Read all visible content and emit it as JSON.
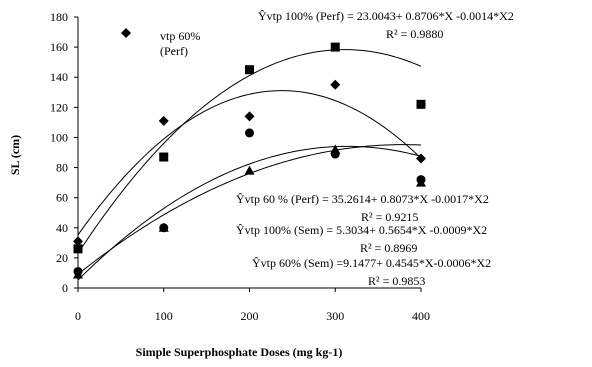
{
  "chart_data": {
    "type": "scatter",
    "xlabel": "Simple Superphosphate Doses (mg kg-1)",
    "ylabel": "SL (cm)",
    "xlim": [
      0,
      400
    ],
    "ylim": [
      0,
      180
    ],
    "x_ticks": [
      "0",
      "100",
      "200",
      "300",
      "400"
    ],
    "y_ticks": [
      "0",
      "20",
      "40",
      "60",
      "80",
      "100",
      "120",
      "140",
      "160",
      "180"
    ],
    "grid": false,
    "legend": {
      "position": "top-left",
      "entries": [
        {
          "marker": "diamond",
          "lines": [
            "vtp 60%",
            "(Perf)"
          ]
        }
      ]
    },
    "series": [
      {
        "marker": "square",
        "x": [
          0,
          100,
          200,
          300,
          400
        ],
        "y": [
          26,
          87,
          145,
          160,
          122
        ],
        "fit": {
          "a": 23.0043,
          "b": 0.8706,
          "c": -0.0014
        }
      },
      {
        "marker": "diamond",
        "x": [
          0,
          100,
          200,
          300,
          400
        ],
        "y": [
          31,
          111,
          114,
          135,
          86
        ],
        "fit": {
          "a": 35.2614,
          "b": 0.8073,
          "c": -0.0017
        }
      },
      {
        "marker": "circle",
        "x": [
          0,
          100,
          200,
          300,
          400
        ],
        "y": [
          11,
          40,
          103,
          89,
          72
        ],
        "fit": {
          "a": 5.3034,
          "b": 0.5654,
          "c": -0.0009
        }
      },
      {
        "marker": "triangle",
        "x": [
          0,
          100,
          200,
          300,
          400
        ],
        "y": [
          9,
          40,
          78,
          92,
          70
        ],
        "fit": {
          "a": 9.1477,
          "b": 0.4545,
          "c": -0.0006
        }
      }
    ],
    "annotations": [
      {
        "eq": "Ŷvtp 100% (Perf) = 23.0043+ 0.8706*X -0.0014*X2",
        "r2": "R² = 0.9880"
      },
      {
        "eq": "Ŷvtp 60 % (Perf) = 35.2614+ 0.8073*X -0.0017*X2",
        "r2": "R² = 0.9215"
      },
      {
        "eq": "Ŷvtp 100% (Sem) = 5.3034+ 0.5654*X -0.0009*X2",
        "r2": "R² = 0.8969"
      },
      {
        "eq": "Ŷvtp 60% (Sem) =9.1477+ 0.4545*X-0.0006*X2",
        "r2": "R² = 0.9853"
      }
    ]
  }
}
